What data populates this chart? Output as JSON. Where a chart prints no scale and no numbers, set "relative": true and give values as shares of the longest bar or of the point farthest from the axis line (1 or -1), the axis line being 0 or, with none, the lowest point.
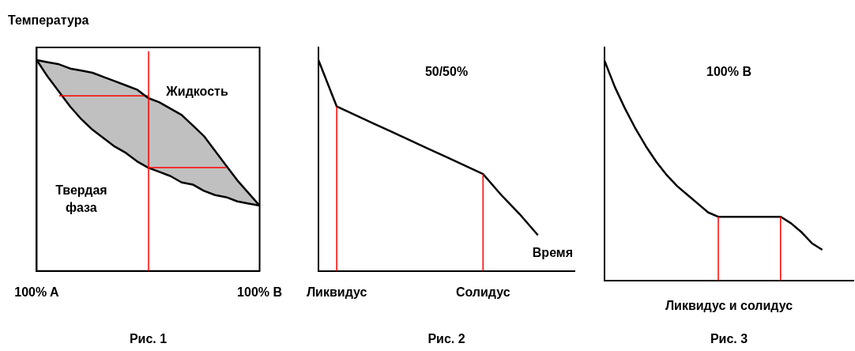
{
  "chart_data": [
    {
      "type": "line",
      "title": "Рис. 1",
      "ylabel": "Температура",
      "relative": true,
      "tick_labels": "x",
      "grid": false,
      "legend": false,
      "marker": "none",
      "categories": [
        "100% A",
        null,
        null,
        null,
        null,
        null,
        null,
        null,
        null,
        null,
        null,
        null,
        null,
        null,
        null,
        null,
        null,
        null,
        null,
        null,
        "100% B"
      ],
      "series": [
        {
          "color": "#000000",
          "values": [
            1,
            0.99,
            0.98,
            0.96,
            0.95,
            0.94,
            0.92,
            0.9,
            0.88,
            0.86,
            0.82,
            0.8,
            0.77,
            0.74,
            0.69,
            0.64,
            0.57,
            0.5,
            0.43,
            0.37,
            0.31
          ],
          "upper": [
            1,
            0.99,
            0.98,
            0.96,
            0.95,
            0.94,
            0.92,
            0.9,
            0.88,
            0.86,
            0.82,
            0.8,
            0.77,
            0.74,
            0.69,
            0.64,
            0.57,
            0.5,
            0.43,
            0.37,
            0.31
          ],
          "lower": [
            1,
            0.92,
            0.85,
            0.78,
            0.72,
            0.67,
            0.63,
            0.59,
            0.56,
            0.52,
            0.49,
            0.47,
            0.45,
            0.42,
            0.41,
            0.38,
            0.36,
            0.35,
            0.33,
            0.32,
            0.31
          ]
        },
        {
          "color": "#ff0000",
          "values": [
            null,
            null,
            0.83,
            0.83,
            0.83,
            0.83,
            0.83,
            0.83,
            0.83,
            0.83,
            0.83,
            null,
            null,
            null,
            null,
            null,
            null,
            null,
            null,
            null,
            null
          ]
        },
        {
          "color": "#ff0000",
          "values": [
            null,
            null,
            null,
            null,
            null,
            null,
            null,
            null,
            null,
            null,
            0.49,
            0.49,
            0.49,
            0.49,
            0.49,
            0.49,
            0.49,
            0.49,
            null,
            null,
            null
          ]
        }
      ],
      "annotations": [
        "Жидкость",
        "Твердая\nфаза"
      ]
    },
    {
      "type": "line",
      "title": "Рис. 2",
      "subtitle": "50/50%",
      "xlabel": "Время",
      "relative": true,
      "tick_labels": "x",
      "grid": false,
      "legend": false,
      "marker": "none",
      "categories": [
        null,
        "Ликвидус",
        null,
        null,
        null,
        null,
        null,
        null,
        null,
        "Солидус",
        null,
        null,
        null,
        null,
        null
      ],
      "series": [
        {
          "color": "#000000",
          "values": [
            1,
            0.78,
            0.74,
            0.7,
            0.66,
            0.62,
            0.58,
            0.54,
            0.5,
            0.46,
            0.36,
            0.27,
            0.17,
            null,
            null
          ]
        }
      ],
      "ref_lines": [
        {
          "axis": "x",
          "value": "Ликвидус",
          "color": "#ff0000"
        },
        {
          "axis": "x",
          "value": "Солидус",
          "color": "#ff0000"
        }
      ]
    },
    {
      "type": "line",
      "title": "Рис. 3",
      "subtitle": "100% B",
      "xlabel": "Ликвидус и солидус",
      "relative": true,
      "tick_labels": false,
      "grid": false,
      "legend": false,
      "marker": "none",
      "categories": [
        null,
        null,
        null,
        null,
        null,
        null,
        null,
        null,
        null,
        null,
        null,
        null,
        null,
        null,
        null,
        null,
        null,
        null,
        null,
        null,
        null,
        null,
        null,
        null,
        null
      ],
      "series": [
        {
          "color": "#000000",
          "values": [
            1,
            0.88,
            0.78,
            0.69,
            0.61,
            0.54,
            0.48,
            0.43,
            0.39,
            0.35,
            0.31,
            0.29,
            0.29,
            0.29,
            0.29,
            0.29,
            0.29,
            0.29,
            0.26,
            0.22,
            0.17,
            0.14,
            null,
            null,
            null
          ]
        }
      ]
    }
  ]
}
